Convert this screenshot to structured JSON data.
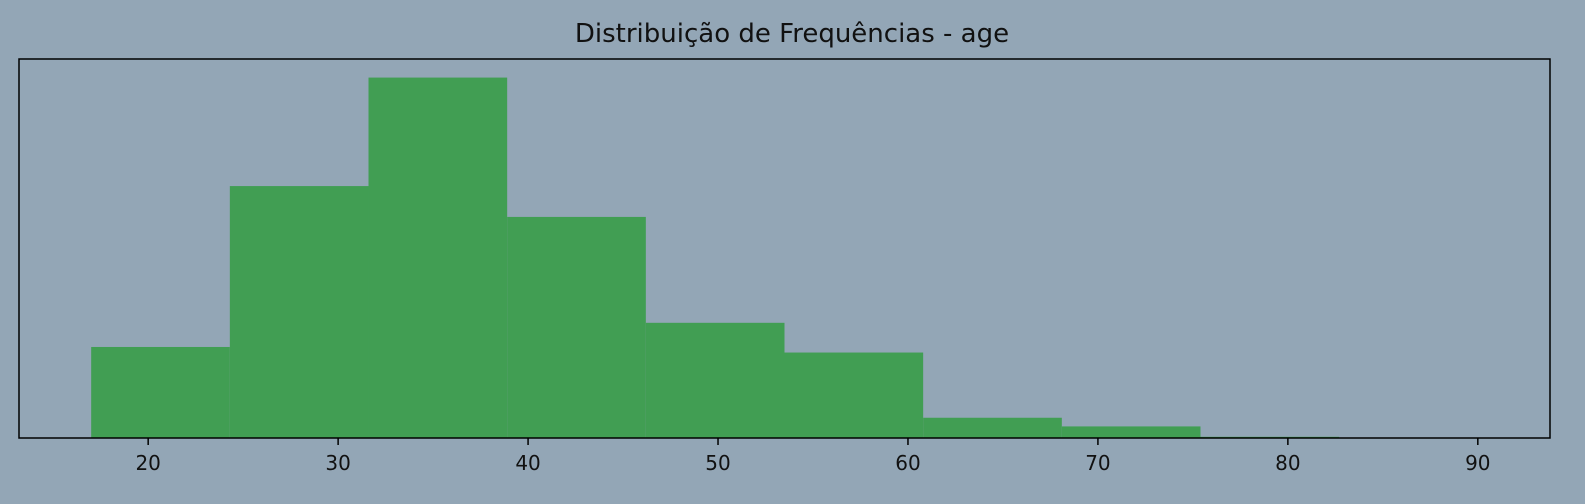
{
  "chart_data": {
    "type": "bar",
    "title": "Distribuição de Frequências - age",
    "xlabel": "",
    "ylabel": "",
    "bin_edges": [
      17.0,
      24.3,
      31.6,
      38.9,
      46.2,
      53.5,
      60.8,
      68.1,
      75.4,
      82.7,
      90.0
    ],
    "counts": [
      2450,
      6780,
      9700,
      5950,
      3100,
      2300,
      545,
      312,
      32,
      10
    ],
    "xlim": [
      13.2,
      93.8
    ],
    "ylim": [
      0,
      10200
    ],
    "xticks": [
      20,
      30,
      40,
      50,
      60,
      70,
      80,
      90
    ],
    "xtick_labels": [
      "20",
      "30",
      "40",
      "50",
      "60",
      "70",
      "80",
      "90"
    ],
    "grid": false,
    "colors": {
      "background": "#93a6b6",
      "bar": "#419e53",
      "axis": "#000000"
    }
  }
}
